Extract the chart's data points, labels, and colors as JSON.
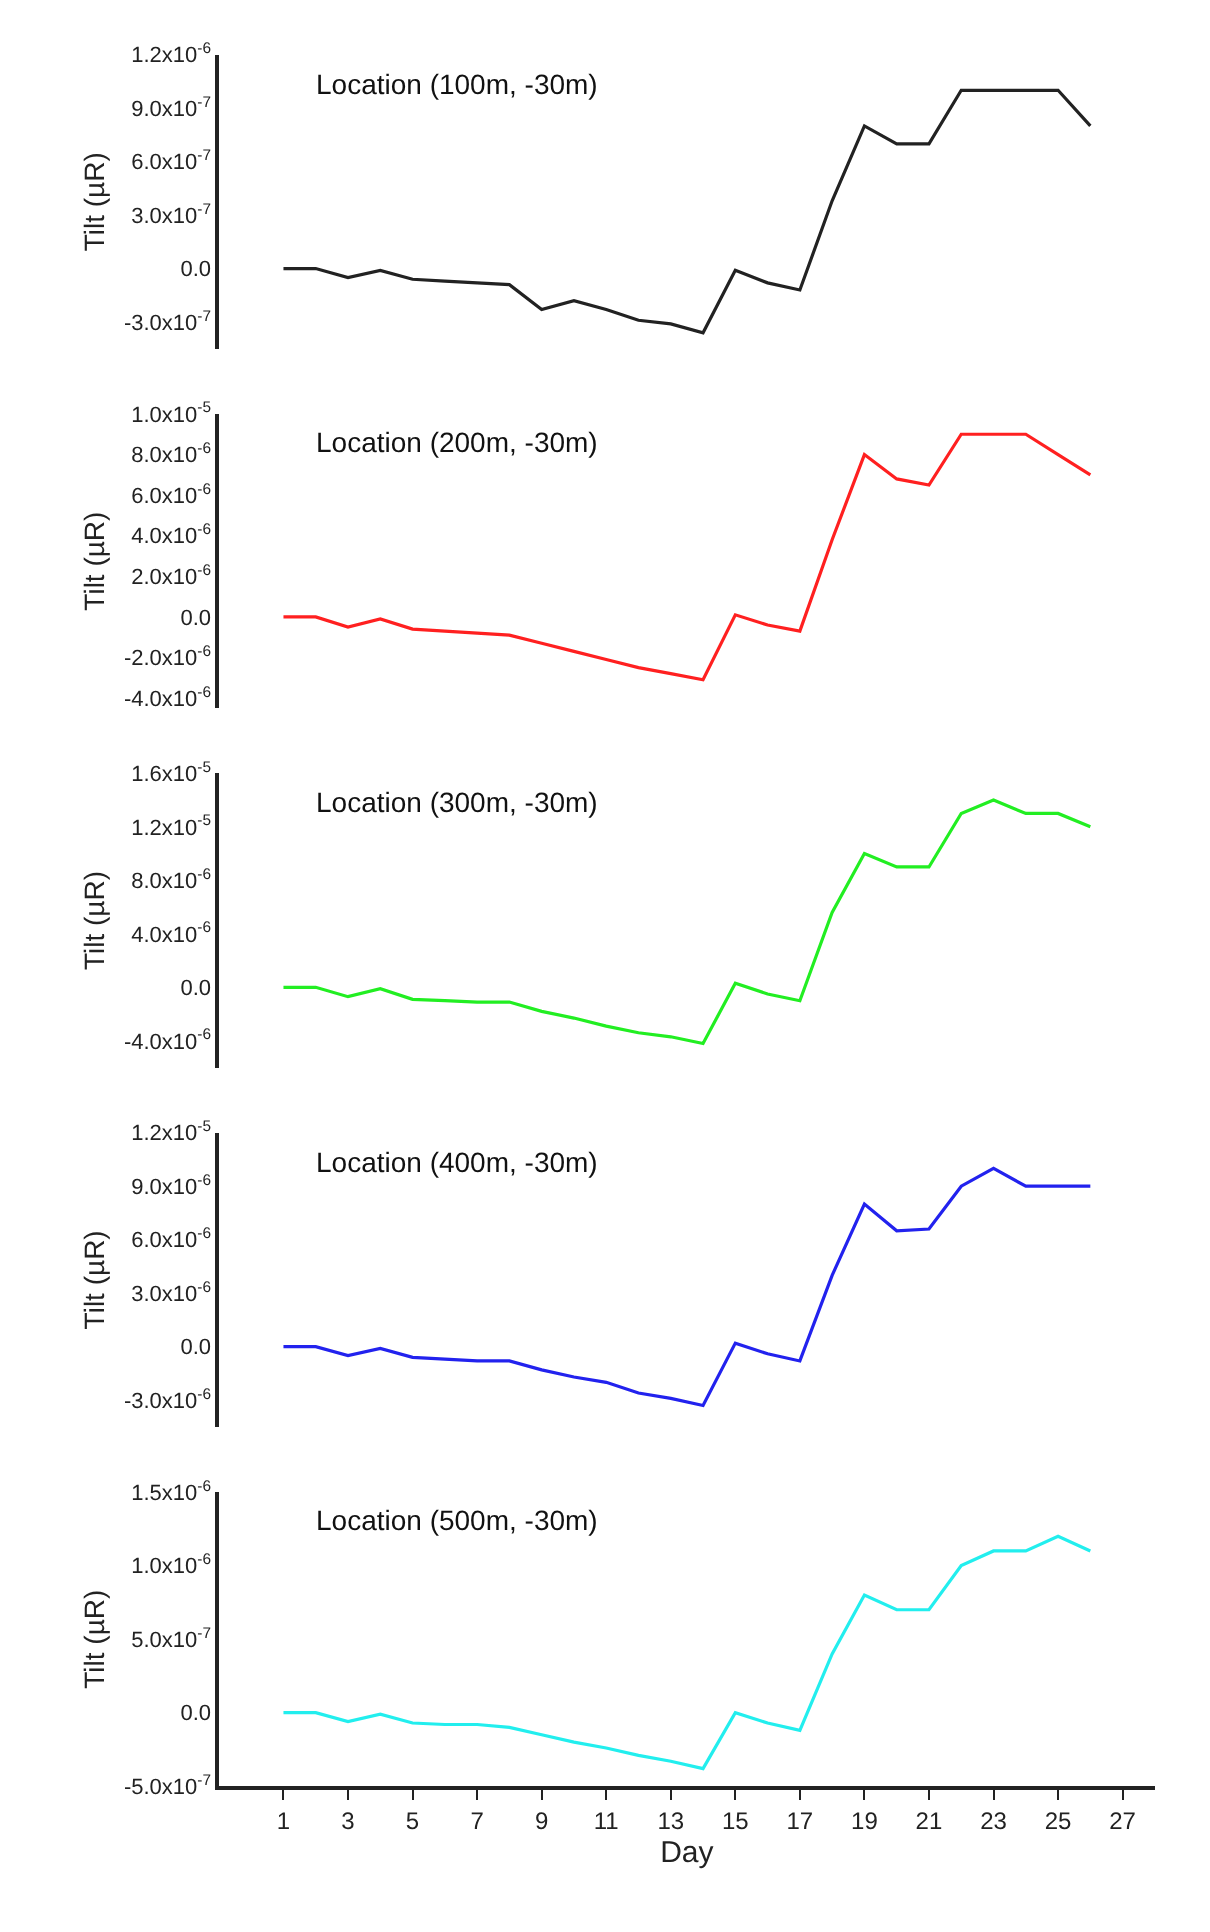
{
  "chart_data": [
    {
      "type": "line",
      "ylabel": "Tilt (µR)",
      "annotations": [
        "Location (100m, -30m)"
      ],
      "x": [
        1,
        2,
        3,
        4,
        5,
        6,
        7,
        8,
        9,
        10,
        11,
        12,
        13,
        14,
        15,
        16,
        17,
        18,
        19,
        20,
        21,
        22,
        23,
        24,
        25,
        26
      ],
      "ylim": [
        -4.5e-07,
        1.2e-06
      ],
      "yticks": [
        {
          "value": -3e-07,
          "label": "-3.0x10$^{-7}$"
        },
        {
          "value": 0,
          "label": "0.0"
        },
        {
          "value": 3e-07,
          "label": "3.0x10$^{-7}$"
        },
        {
          "value": 6e-07,
          "label": "6.0x10$^{-7}$"
        },
        {
          "value": 9e-07,
          "label": "9.0x10$^{-7}$"
        },
        {
          "value": 1.2e-06,
          "label": "1.2x10$^{-6}$"
        }
      ],
      "tick_labels": "y",
      "series": [
        {
          "color": "#222222",
          "values": [
            0,
            0,
            -5e-08,
            -1e-08,
            -6e-08,
            -7e-08,
            -8e-08,
            -9e-08,
            -2.3e-07,
            -1.8e-07,
            -2.3e-07,
            -2.9e-07,
            -3.1e-07,
            -3.6e-07,
            -1e-08,
            -8e-08,
            -1.2e-07,
            3.8e-07,
            8e-07,
            7e-07,
            7e-07,
            1e-06,
            1e-06,
            1e-06,
            1e-06,
            8e-07
          ]
        }
      ]
    },
    {
      "type": "line",
      "ylabel": "Tilt (µR)",
      "annotations": [
        "Location (200m, -30m)"
      ],
      "x": [
        1,
        2,
        3,
        4,
        5,
        6,
        7,
        8,
        9,
        10,
        11,
        12,
        13,
        14,
        15,
        16,
        17,
        18,
        19,
        20,
        21,
        22,
        23,
        24,
        25,
        26
      ],
      "ylim": [
        -4.5e-06,
        1e-05
      ],
      "yticks": [
        {
          "value": -4e-06,
          "label": "-4.0x10$^{-6}$"
        },
        {
          "value": -2e-06,
          "label": "-2.0x10$^{-6}$"
        },
        {
          "value": 0,
          "label": "0.0"
        },
        {
          "value": 2e-06,
          "label": "2.0x10$^{-6}$"
        },
        {
          "value": 4e-06,
          "label": "4.0x10$^{-6}$"
        },
        {
          "value": 6e-06,
          "label": "6.0x10$^{-6}$"
        },
        {
          "value": 8e-06,
          "label": "8.0x10$^{-6}$"
        },
        {
          "value": 1e-05,
          "label": "1.0x10$^{-5}$"
        }
      ],
      "tick_labels": "y",
      "series": [
        {
          "color": "#ff2020",
          "values": [
            0,
            0,
            -5e-07,
            -1e-07,
            -6e-07,
            -7e-07,
            -8e-07,
            -9e-07,
            -1.3e-06,
            -1.7e-06,
            -2.1e-06,
            -2.5e-06,
            -2.8e-06,
            -3.1e-06,
            1e-07,
            -4e-07,
            -7e-07,
            3.8e-06,
            8e-06,
            6.8e-06,
            6.5e-06,
            9e-06,
            9e-06,
            9e-06,
            8e-06,
            7e-06
          ]
        }
      ]
    },
    {
      "type": "line",
      "ylabel": "Tilt (µR)",
      "annotations": [
        "Location (300m, -30m)"
      ],
      "x": [
        1,
        2,
        3,
        4,
        5,
        6,
        7,
        8,
        9,
        10,
        11,
        12,
        13,
        14,
        15,
        16,
        17,
        18,
        19,
        20,
        21,
        22,
        23,
        24,
        25,
        26
      ],
      "ylim": [
        -6e-06,
        1.6e-05
      ],
      "yticks": [
        {
          "value": -4e-06,
          "label": "-4.0x10$^{-6}$"
        },
        {
          "value": 0,
          "label": "0.0"
        },
        {
          "value": 4e-06,
          "label": "4.0x10$^{-6}$"
        },
        {
          "value": 8e-06,
          "label": "8.0x10$^{-6}$"
        },
        {
          "value": 1.2e-05,
          "label": "1.2x10$^{-5}$"
        },
        {
          "value": 1.6e-05,
          "label": "1.6x10$^{-5}$"
        }
      ],
      "tick_labels": "y",
      "series": [
        {
          "color": "#22ee22",
          "values": [
            0,
            0,
            -7e-07,
            -1e-07,
            -9e-07,
            -1e-06,
            -1.1e-06,
            -1.1e-06,
            -1.8e-06,
            -2.3e-06,
            -2.9e-06,
            -3.4e-06,
            -3.7e-06,
            -4.2e-06,
            3e-07,
            -5e-07,
            -1e-06,
            5.6e-06,
            1e-05,
            9e-06,
            9e-06,
            1.3e-05,
            1.4e-05,
            1.3e-05,
            1.3e-05,
            1.2e-05
          ]
        }
      ]
    },
    {
      "type": "line",
      "ylabel": "Tilt (µR)",
      "annotations": [
        "Location (400m, -30m)"
      ],
      "x": [
        1,
        2,
        3,
        4,
        5,
        6,
        7,
        8,
        9,
        10,
        11,
        12,
        13,
        14,
        15,
        16,
        17,
        18,
        19,
        20,
        21,
        22,
        23,
        24,
        25,
        26
      ],
      "ylim": [
        -4.5e-06,
        1.2e-05
      ],
      "yticks": [
        {
          "value": -3e-06,
          "label": "-3.0x10$^{-6}$"
        },
        {
          "value": 0,
          "label": "0.0"
        },
        {
          "value": 3e-06,
          "label": "3.0x10$^{-6}$"
        },
        {
          "value": 6e-06,
          "label": "6.0x10$^{-6}$"
        },
        {
          "value": 9e-06,
          "label": "9.0x10$^{-6}$"
        },
        {
          "value": 1.2e-05,
          "label": "1.2x10$^{-5}$"
        }
      ],
      "tick_labels": "y",
      "series": [
        {
          "color": "#2222ee",
          "values": [
            0,
            0,
            -5e-07,
            -1e-07,
            -6e-07,
            -7e-07,
            -8e-07,
            -8e-07,
            -1.3e-06,
            -1.7e-06,
            -2e-06,
            -2.6e-06,
            -2.9e-06,
            -3.3e-06,
            2e-07,
            -4e-07,
            -8e-07,
            4e-06,
            8e-06,
            6.5e-06,
            6.6e-06,
            9e-06,
            1e-05,
            9e-06,
            9e-06,
            9e-06
          ]
        }
      ]
    },
    {
      "type": "line",
      "xlabel": "Day",
      "ylabel": "Tilt (µR)",
      "annotations": [
        "Location (500m, -30m)"
      ],
      "x": [
        1,
        2,
        3,
        4,
        5,
        6,
        7,
        8,
        9,
        10,
        11,
        12,
        13,
        14,
        15,
        16,
        17,
        18,
        19,
        20,
        21,
        22,
        23,
        24,
        25,
        26
      ],
      "xlim": [
        -1,
        28
      ],
      "xticks": [
        1,
        3,
        5,
        7,
        9,
        11,
        13,
        15,
        17,
        19,
        21,
        23,
        25,
        27
      ],
      "ylim": [
        -5e-07,
        1.5e-06
      ],
      "yticks": [
        {
          "value": -5e-07,
          "label": "-5.0x10$^{-7}$"
        },
        {
          "value": 0,
          "label": "0.0"
        },
        {
          "value": 5e-07,
          "label": "5.0x10$^{-7}$"
        },
        {
          "value": 1e-06,
          "label": "1.0x10$^{-6}$"
        },
        {
          "value": 1.5e-06,
          "label": "1.5x10$^{-6}$"
        }
      ],
      "series": [
        {
          "color": "#22eeee",
          "values": [
            0,
            0,
            -6e-08,
            -1e-08,
            -7e-08,
            -8e-08,
            -8e-08,
            -1e-07,
            -1.5e-07,
            -2e-07,
            -2.4e-07,
            -2.9e-07,
            -3.3e-07,
            -3.8e-07,
            0,
            -7e-08,
            -1.2e-07,
            4e-07,
            8e-07,
            7e-07,
            7e-07,
            1e-06,
            1.1e-06,
            1.1e-06,
            1.2e-06,
            1.1e-06
          ]
        }
      ]
    }
  ]
}
